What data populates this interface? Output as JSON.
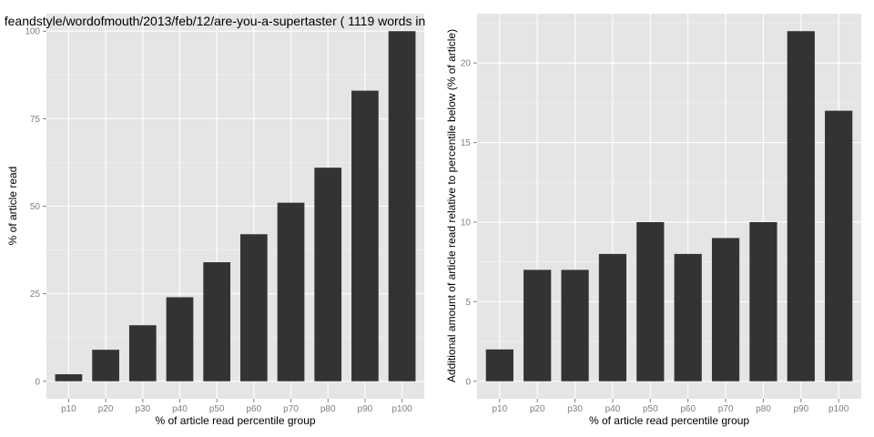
{
  "title": "feandstyle/wordofmouth/2013/feb/12/are-you-a-supertaster ( 1119 words in",
  "colors": {
    "panel": "#e5e5e5",
    "grid_major": "#ffffff",
    "grid_minor": "#f2f2f2",
    "bar": "#333333",
    "tick_text": "#7f7f7f"
  },
  "chart_data": [
    {
      "type": "bar",
      "categories": [
        "p10",
        "p20",
        "p30",
        "p40",
        "p50",
        "p60",
        "p70",
        "p80",
        "p90",
        "p100"
      ],
      "values": [
        2,
        9,
        16,
        24,
        34,
        42,
        51,
        61,
        83,
        100
      ],
      "xlabel": "% of article read percentile group",
      "ylabel": "% of article read",
      "ylim": [
        0,
        100
      ],
      "yticks": [
        0,
        25,
        50,
        75,
        100
      ],
      "ytick_labels": [
        "0",
        "25",
        "50",
        "75",
        "100"
      ],
      "grid": true
    },
    {
      "type": "bar",
      "categories": [
        "p10",
        "p20",
        "p30",
        "p40",
        "p50",
        "p60",
        "p70",
        "p80",
        "p90",
        "p100"
      ],
      "values": [
        2,
        7,
        7,
        8,
        10,
        8,
        9,
        10,
        22,
        17
      ],
      "xlabel": "% of article read percentile group",
      "ylabel": "Additional amount of article read relative to percentile below (% of article)",
      "ylim": [
        0,
        22
      ],
      "yticks": [
        0,
        5,
        10,
        15,
        20
      ],
      "ytick_labels": [
        "0",
        "5",
        "10",
        "15",
        "20"
      ],
      "grid": true
    }
  ]
}
